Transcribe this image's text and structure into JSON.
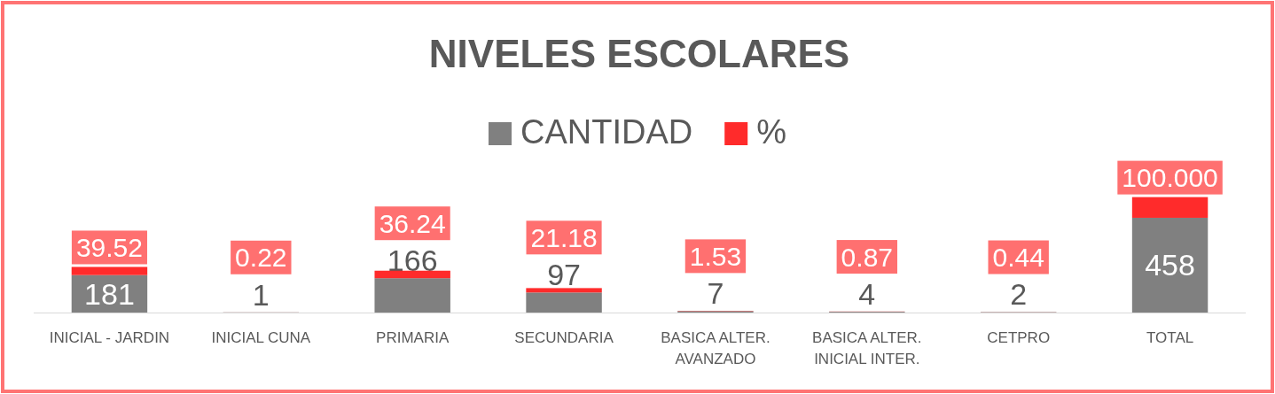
{
  "chart_data": {
    "type": "bar",
    "title": "NIVELES ESCOLARES",
    "categories": [
      "INICIAL - JARDIN",
      "INICIAL CUNA",
      "PRIMARIA",
      "SECUNDARIA",
      "BASICA ALTER. AVANZADO",
      "BASICA ALTER. INICIAL INTER.",
      "CETPRO",
      "TOTAL"
    ],
    "series": [
      {
        "name": "CANTIDAD",
        "color": "#808080",
        "values": [
          181,
          1,
          166,
          97,
          7,
          4,
          2,
          458
        ],
        "value_labels": [
          "181",
          "1",
          "166",
          "97",
          "7",
          "4",
          "2",
          "458"
        ]
      },
      {
        "name": "%",
        "color": "#ff2b2b",
        "values": [
          39.52,
          0.22,
          36.24,
          21.18,
          1.53,
          0.87,
          0.44,
          100.0
        ],
        "value_labels": [
          "39.52",
          "0.22",
          "36.24",
          "21.18",
          "1.53",
          "0.87",
          "0.44",
          "100.000"
        ]
      }
    ],
    "stacked": true,
    "tick_labels": "x",
    "legend": "top"
  }
}
